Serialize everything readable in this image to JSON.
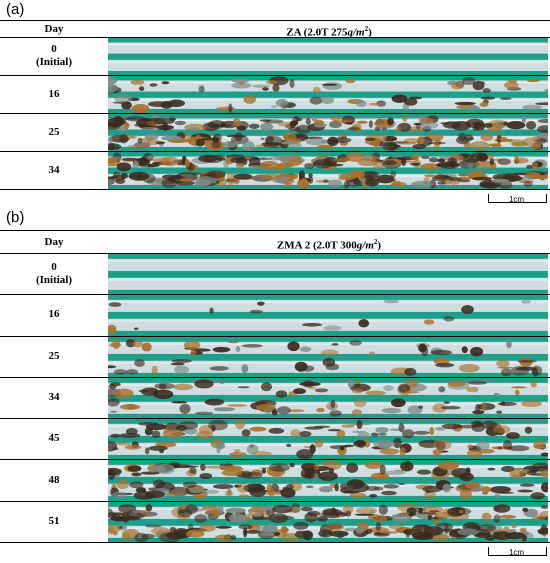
{
  "panel_a": {
    "letter": "(a)",
    "day_header": "Day",
    "title_prefix": "ZA (2.0T 275",
    "title_unit": "g/m",
    "title_exp": "2",
    "title_suffix": ")",
    "rows": [
      {
        "day": "0",
        "sub": "(Initial)",
        "corrosion": 0.0
      },
      {
        "day": "16",
        "sub": "",
        "corrosion": 0.25
      },
      {
        "day": "25",
        "sub": "",
        "corrosion": 0.75
      },
      {
        "day": "34",
        "sub": "",
        "corrosion": 0.9
      }
    ],
    "scale_label": "1cm"
  },
  "panel_b": {
    "letter": "(b)",
    "day_header": "Day",
    "title_prefix": "ZMA 2 (2.0T 300",
    "title_unit": "g/m",
    "title_exp": "2",
    "title_suffix": ")",
    "rows": [
      {
        "day": "0",
        "sub": "(Initial)",
        "corrosion": 0.0
      },
      {
        "day": "16",
        "sub": "",
        "corrosion": 0.05
      },
      {
        "day": "25",
        "sub": "",
        "corrosion": 0.2
      },
      {
        "day": "34",
        "sub": "",
        "corrosion": 0.3
      },
      {
        "day": "45",
        "sub": "",
        "corrosion": 0.4
      },
      {
        "day": "48",
        "sub": "",
        "corrosion": 0.6
      },
      {
        "day": "51",
        "sub": "",
        "corrosion": 0.8
      }
    ],
    "scale_label": "1cm"
  },
  "colors": {
    "background_teal": "#1f9e8a",
    "steel": "#cfdde0",
    "rust_dark": "#3a2a1e",
    "rust_orange": "#a8702e"
  }
}
